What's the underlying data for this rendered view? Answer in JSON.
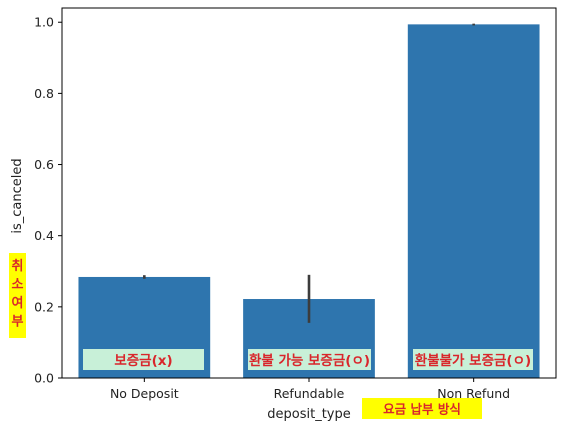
{
  "chart_data": {
    "type": "bar",
    "categories": [
      "No Deposit",
      "Refundable",
      "Non Refund"
    ],
    "values": [
      0.284,
      0.222,
      0.994
    ],
    "error_bars": [
      [
        0.279,
        0.289
      ],
      [
        0.155,
        0.29
      ],
      [
        0.991,
        0.996
      ]
    ],
    "xlabel": "deposit_type",
    "ylabel": "is_canceled",
    "ylim": [
      0,
      1.04
    ],
    "yticks": [
      0.0,
      0.2,
      0.4,
      0.6,
      0.8,
      1.0
    ],
    "ytick_labels": [
      "0.0",
      "0.2",
      "0.4",
      "0.6",
      "0.8",
      "1.0"
    ],
    "grid": false,
    "bar_color": "#2e75ae",
    "errorbar_color": "#3c3c3c",
    "annotations": [
      {
        "category": "No Deposit",
        "text": "보증금(x)"
      },
      {
        "category": "Refundable",
        "text": "환불 가능 보증금(ㅇ)"
      },
      {
        "category": "Non Refund",
        "text": "환불불가 보증금(ㅇ)"
      }
    ],
    "annotation_bg_color": "#c8f0d8",
    "annotation_text_color": "#d9262b",
    "ylabel_note": [
      "취",
      "소",
      "여",
      "부"
    ],
    "xlabel_note": "요금 납부 방식",
    "note_bg_color": "#ffff00"
  }
}
